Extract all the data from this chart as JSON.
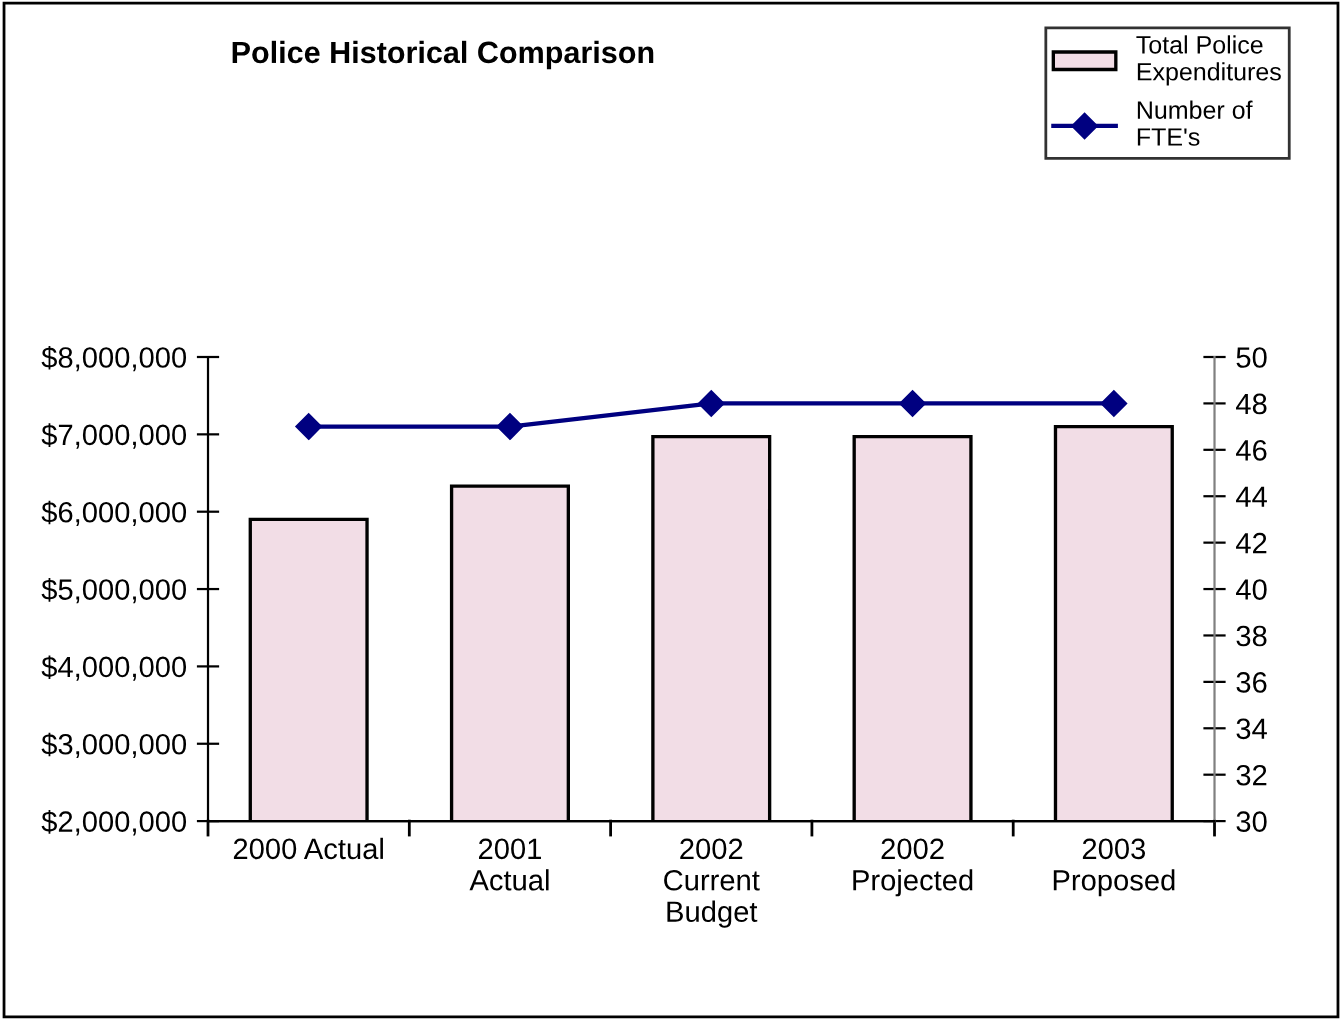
{
  "chart_data": {
    "type": "bar",
    "title": "Police Historical Comparison",
    "categories": [
      "2000 Actual",
      "2001\nActual",
      "2002\nCurrent\nBudget",
      "2002\nProjected",
      "2003\nProposed"
    ],
    "series": [
      {
        "name": "Total Police\nExpenditures",
        "color": "#f2dde6",
        "values": [
          5900000,
          6330000,
          6970000,
          6970000,
          7100000
        ]
      },
      {
        "name": "Number of\nFTE's",
        "type": "line",
        "axis": "y2",
        "color": "#000080",
        "marker": "diamond",
        "values": [
          47,
          47,
          48,
          48,
          48
        ]
      }
    ],
    "ylim": [
      2000000,
      8000000
    ],
    "yticks": [
      {
        "value": 2000000,
        "label": "$2,000,000"
      },
      {
        "value": 3000000,
        "label": "$3,000,000"
      },
      {
        "value": 4000000,
        "label": "$4,000,000"
      },
      {
        "value": 5000000,
        "label": "$5,000,000"
      },
      {
        "value": 6000000,
        "label": "$6,000,000"
      },
      {
        "value": 7000000,
        "label": "$7,000,000"
      },
      {
        "value": 8000000,
        "label": "$8,000,000"
      }
    ],
    "y2lim": [
      30,
      50
    ],
    "y2ticks": [
      30,
      32,
      34,
      36,
      38,
      40,
      42,
      44,
      46,
      48,
      50
    ],
    "grid": false,
    "legend": "top right"
  }
}
